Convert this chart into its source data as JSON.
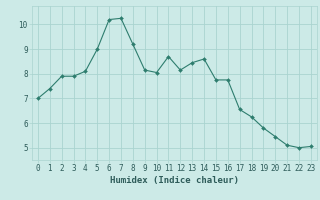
{
  "x": [
    0,
    1,
    2,
    3,
    4,
    5,
    6,
    7,
    8,
    9,
    10,
    11,
    12,
    13,
    14,
    15,
    16,
    17,
    18,
    19,
    20,
    21,
    22,
    23
  ],
  "y": [
    7.0,
    7.4,
    7.9,
    7.9,
    8.1,
    9.0,
    10.2,
    10.25,
    9.2,
    8.15,
    8.05,
    8.7,
    8.15,
    8.45,
    8.6,
    7.75,
    7.75,
    6.55,
    6.25,
    5.8,
    5.45,
    5.1,
    5.0,
    5.05
  ],
  "line_color": "#2e7d6e",
  "marker": "D",
  "marker_size": 2.0,
  "bg_color": "#cceae7",
  "grid_color": "#aad4d0",
  "xlabel": "Humidex (Indice chaleur)",
  "ylim": [
    4.5,
    10.75
  ],
  "xlim": [
    -0.5,
    23.5
  ],
  "yticks": [
    5,
    6,
    7,
    8,
    9,
    10
  ],
  "xticks": [
    0,
    1,
    2,
    3,
    4,
    5,
    6,
    7,
    8,
    9,
    10,
    11,
    12,
    13,
    14,
    15,
    16,
    17,
    18,
    19,
    20,
    21,
    22,
    23
  ],
  "font_color": "#2e5c5a",
  "tick_font_size": 5.5,
  "label_font_size": 6.5
}
